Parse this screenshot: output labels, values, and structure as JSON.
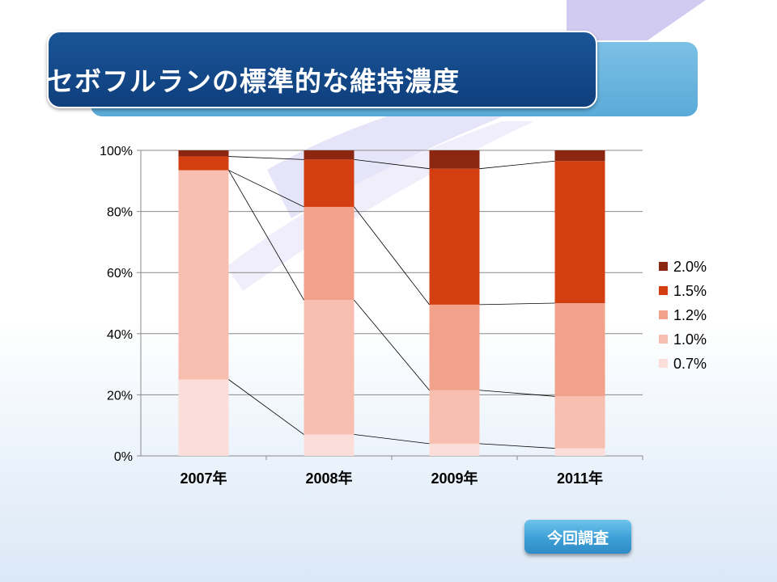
{
  "slide": {
    "title": "セボフルランの標準的な維持濃度",
    "button_label": "今回調査"
  },
  "colors": {
    "title_bg": "#124a8b",
    "title_accent": "#6bb5e0",
    "series": [
      "#fbded9",
      "#f8bfb0",
      "#f2a18a",
      "#d43f12",
      "#8b2610"
    ]
  },
  "chart_data": {
    "type": "bar",
    "stacked": "percent",
    "categories": [
      "2007年",
      "2008年",
      "2009年",
      "2011年"
    ],
    "ylim": [
      0,
      100
    ],
    "yticks": [
      "0%",
      "20%",
      "40%",
      "60%",
      "80%",
      "100%"
    ],
    "legend_position": "right",
    "series_lines": true,
    "series": [
      {
        "name": "0.7%",
        "values": [
          25,
          7,
          4,
          2.5
        ]
      },
      {
        "name": "1.0%",
        "values": [
          68.5,
          44,
          17.5,
          17
        ]
      },
      {
        "name": "1.2%",
        "values": [
          0,
          30.5,
          28,
          30.5
        ]
      },
      {
        "name": "1.5%",
        "values": [
          4.5,
          15.5,
          44.5,
          46.5
        ]
      },
      {
        "name": "2.0%",
        "values": [
          2,
          3,
          6,
          3.5
        ]
      }
    ]
  }
}
